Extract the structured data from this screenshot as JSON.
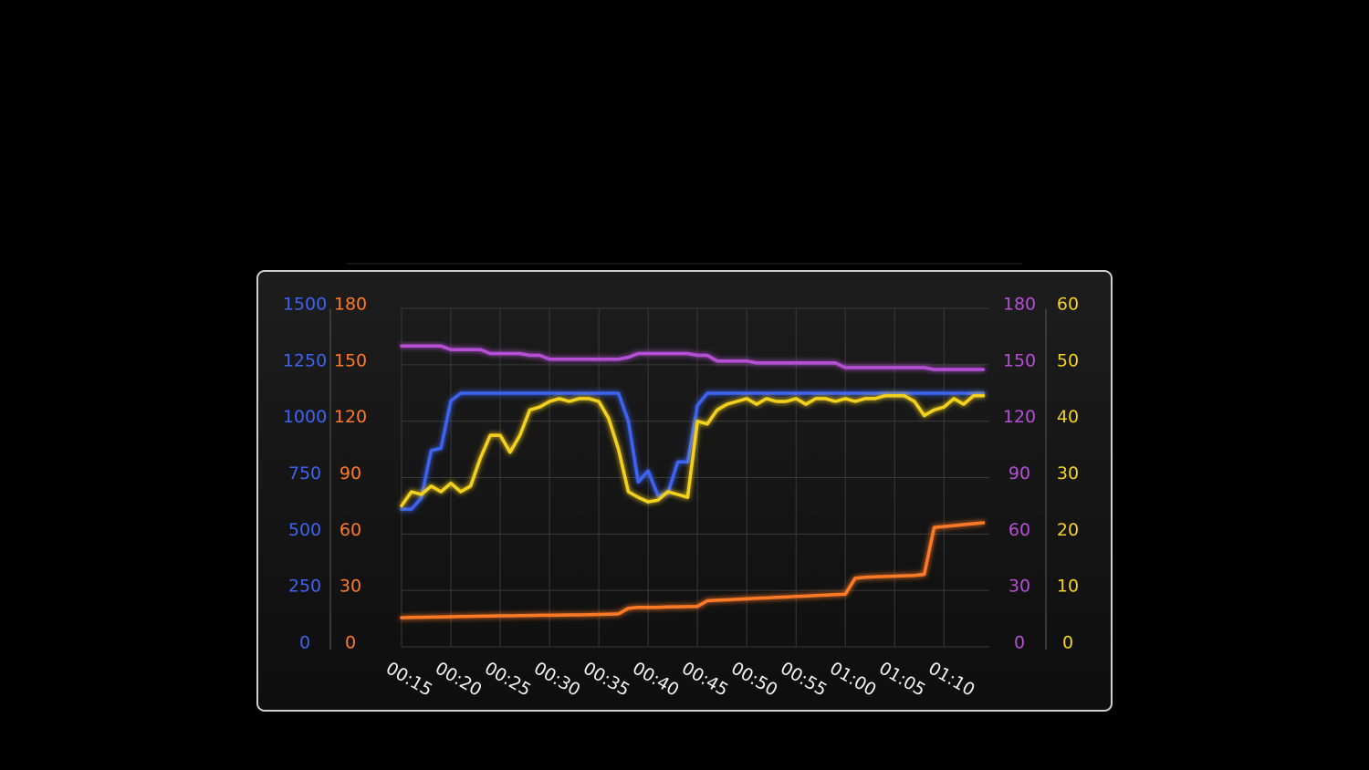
{
  "chart_data": {
    "type": "line",
    "x": [
      15,
      16,
      17,
      18,
      19,
      20,
      21,
      22,
      23,
      24,
      25,
      26,
      27,
      28,
      29,
      30,
      31,
      32,
      33,
      34,
      35,
      36,
      37,
      38,
      39,
      40,
      41,
      42,
      43,
      44,
      45,
      46,
      47,
      48,
      49,
      50,
      51,
      52,
      53,
      54,
      55,
      56,
      57,
      58,
      59,
      60,
      61,
      62,
      63,
      64,
      65,
      66,
      67,
      68,
      69,
      70,
      71,
      72,
      73,
      74
    ],
    "xlim": [
      15,
      74.6
    ],
    "xticks": [
      {
        "value": 15,
        "label": "00:15"
      },
      {
        "value": 20,
        "label": "00:20"
      },
      {
        "value": 25,
        "label": "00:25"
      },
      {
        "value": 30,
        "label": "00:30"
      },
      {
        "value": 35,
        "label": "00:35"
      },
      {
        "value": 40,
        "label": "00:40"
      },
      {
        "value": 45,
        "label": "00:45"
      },
      {
        "value": 50,
        "label": "00:50"
      },
      {
        "value": 55,
        "label": "00:55"
      },
      {
        "value": 60,
        "label": "01:00"
      },
      {
        "value": 65,
        "label": "01:05"
      },
      {
        "value": 70,
        "label": "01:10"
      }
    ],
    "ylim": [
      0,
      1500
    ],
    "yticks": [
      0,
      250,
      500,
      750,
      1000,
      1250,
      1500
    ],
    "y2lim": [
      0,
      180
    ],
    "y2ticks": [
      0,
      30,
      60,
      90,
      120,
      150,
      180
    ],
    "y3lim": [
      0,
      180
    ],
    "y3ticks": [
      0,
      30,
      60,
      90,
      120,
      150,
      180
    ],
    "y4lim": [
      0,
      60
    ],
    "y4ticks": [
      0,
      10,
      20,
      30,
      40,
      50,
      60
    ],
    "grid": true,
    "series": [
      {
        "axis": "y",
        "color": "#3d63f0",
        "values": [
          610,
          610,
          660,
          870,
          880,
          1090,
          1124,
          1124,
          1124,
          1124,
          1124,
          1124,
          1124,
          1124,
          1124,
          1124,
          1124,
          1124,
          1124,
          1124,
          1124,
          1124,
          1124,
          1000,
          730,
          780,
          670,
          680,
          820,
          820,
          1070,
          1124,
          1124,
          1124,
          1124,
          1124,
          1124,
          1124,
          1124,
          1124,
          1124,
          1124,
          1124,
          1124,
          1124,
          1124,
          1124,
          1124,
          1124,
          1124,
          1124,
          1124,
          1124,
          1124,
          1124,
          1124,
          1124,
          1124,
          1124,
          1124
        ]
      },
      {
        "axis": "y2",
        "color": "#ff7a26",
        "values": [
          15.5,
          15.6,
          15.7,
          15.8,
          15.9,
          16,
          16.1,
          16.2,
          16.3,
          16.4,
          16.5,
          16.5,
          16.6,
          16.7,
          16.8,
          16.8,
          16.9,
          17,
          17,
          17.1,
          17.2,
          17.3,
          17.5,
          20.5,
          21,
          21,
          21,
          21.2,
          21.3,
          21.4,
          21.5,
          24.5,
          24.8,
          25,
          25.3,
          25.5,
          25.8,
          26,
          26.3,
          26.5,
          26.8,
          27,
          27.3,
          27.5,
          27.8,
          28,
          36.5,
          37,
          37.2,
          37.4,
          37.6,
          37.8,
          38,
          38.5,
          63.5,
          64,
          64.5,
          65,
          65.5,
          66
        ]
      },
      {
        "axis": "y3",
        "color": "#b64fd6",
        "values": [
          160,
          160,
          160,
          160,
          160,
          158,
          158,
          158,
          158,
          156,
          156,
          156,
          156,
          155,
          155,
          153,
          153,
          153,
          153,
          153,
          153,
          153,
          153,
          154,
          156,
          156,
          156,
          156,
          156,
          156,
          155,
          155,
          152,
          152,
          152,
          152,
          151,
          151,
          151,
          151,
          151,
          151,
          151,
          151,
          151,
          148.5,
          148.5,
          148.5,
          148.5,
          148.5,
          148.5,
          148.5,
          148.5,
          148.5,
          147.5,
          147.5,
          147.5,
          147.5,
          147.5,
          147.5
        ]
      },
      {
        "axis": "y4",
        "color": "#f4d21f",
        "values": [
          25,
          27.5,
          27,
          28.5,
          27.5,
          29,
          27.5,
          28.5,
          33.5,
          37.5,
          37.5,
          34.5,
          37.5,
          42,
          42.5,
          43.5,
          44,
          43.5,
          44,
          44,
          43.5,
          40.5,
          35,
          27.5,
          26.5,
          25.7,
          26,
          27.5,
          27,
          26.5,
          40,
          39.5,
          42,
          43,
          43.5,
          44,
          43,
          44,
          43.5,
          43.5,
          44,
          43,
          44,
          44,
          43.5,
          44,
          43.5,
          44,
          44,
          44.5,
          44.5,
          44.5,
          43.5,
          41,
          42,
          42.5,
          44,
          43,
          44.5,
          44.5
        ]
      }
    ]
  }
}
